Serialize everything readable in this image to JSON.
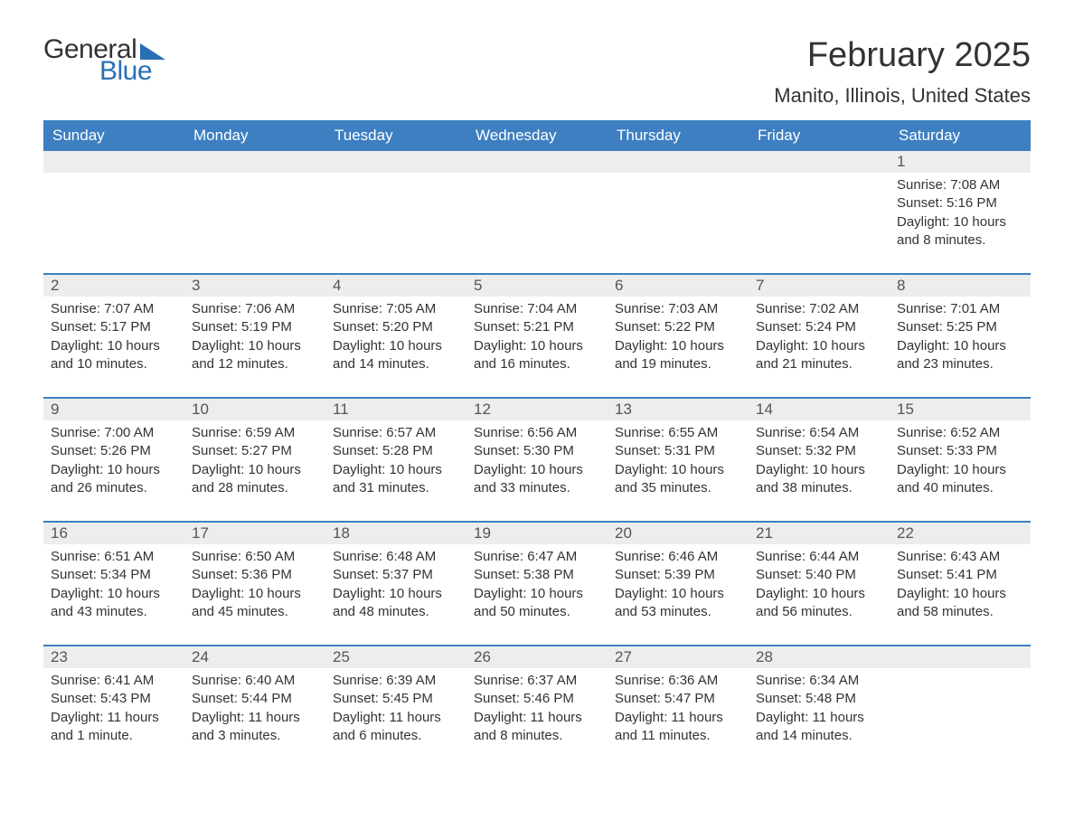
{
  "logo": {
    "text1": "General",
    "text2": "Blue"
  },
  "title": "February 2025",
  "location": "Manito, Illinois, United States",
  "colors": {
    "header_bg": "#3d7fc1",
    "header_text": "#ffffff",
    "daynum_bg": "#ededed",
    "week_border": "#3d7fc1",
    "logo_accent": "#2a6fb5",
    "body_text": "#333333"
  },
  "days_of_week": [
    "Sunday",
    "Monday",
    "Tuesday",
    "Wednesday",
    "Thursday",
    "Friday",
    "Saturday"
  ],
  "weeks": [
    [
      null,
      null,
      null,
      null,
      null,
      null,
      {
        "n": "1",
        "sunrise": "Sunrise: 7:08 AM",
        "sunset": "Sunset: 5:16 PM",
        "daylight": "Daylight: 10 hours and 8 minutes."
      }
    ],
    [
      {
        "n": "2",
        "sunrise": "Sunrise: 7:07 AM",
        "sunset": "Sunset: 5:17 PM",
        "daylight": "Daylight: 10 hours and 10 minutes."
      },
      {
        "n": "3",
        "sunrise": "Sunrise: 7:06 AM",
        "sunset": "Sunset: 5:19 PM",
        "daylight": "Daylight: 10 hours and 12 minutes."
      },
      {
        "n": "4",
        "sunrise": "Sunrise: 7:05 AM",
        "sunset": "Sunset: 5:20 PM",
        "daylight": "Daylight: 10 hours and 14 minutes."
      },
      {
        "n": "5",
        "sunrise": "Sunrise: 7:04 AM",
        "sunset": "Sunset: 5:21 PM",
        "daylight": "Daylight: 10 hours and 16 minutes."
      },
      {
        "n": "6",
        "sunrise": "Sunrise: 7:03 AM",
        "sunset": "Sunset: 5:22 PM",
        "daylight": "Daylight: 10 hours and 19 minutes."
      },
      {
        "n": "7",
        "sunrise": "Sunrise: 7:02 AM",
        "sunset": "Sunset: 5:24 PM",
        "daylight": "Daylight: 10 hours and 21 minutes."
      },
      {
        "n": "8",
        "sunrise": "Sunrise: 7:01 AM",
        "sunset": "Sunset: 5:25 PM",
        "daylight": "Daylight: 10 hours and 23 minutes."
      }
    ],
    [
      {
        "n": "9",
        "sunrise": "Sunrise: 7:00 AM",
        "sunset": "Sunset: 5:26 PM",
        "daylight": "Daylight: 10 hours and 26 minutes."
      },
      {
        "n": "10",
        "sunrise": "Sunrise: 6:59 AM",
        "sunset": "Sunset: 5:27 PM",
        "daylight": "Daylight: 10 hours and 28 minutes."
      },
      {
        "n": "11",
        "sunrise": "Sunrise: 6:57 AM",
        "sunset": "Sunset: 5:28 PM",
        "daylight": "Daylight: 10 hours and 31 minutes."
      },
      {
        "n": "12",
        "sunrise": "Sunrise: 6:56 AM",
        "sunset": "Sunset: 5:30 PM",
        "daylight": "Daylight: 10 hours and 33 minutes."
      },
      {
        "n": "13",
        "sunrise": "Sunrise: 6:55 AM",
        "sunset": "Sunset: 5:31 PM",
        "daylight": "Daylight: 10 hours and 35 minutes."
      },
      {
        "n": "14",
        "sunrise": "Sunrise: 6:54 AM",
        "sunset": "Sunset: 5:32 PM",
        "daylight": "Daylight: 10 hours and 38 minutes."
      },
      {
        "n": "15",
        "sunrise": "Sunrise: 6:52 AM",
        "sunset": "Sunset: 5:33 PM",
        "daylight": "Daylight: 10 hours and 40 minutes."
      }
    ],
    [
      {
        "n": "16",
        "sunrise": "Sunrise: 6:51 AM",
        "sunset": "Sunset: 5:34 PM",
        "daylight": "Daylight: 10 hours and 43 minutes."
      },
      {
        "n": "17",
        "sunrise": "Sunrise: 6:50 AM",
        "sunset": "Sunset: 5:36 PM",
        "daylight": "Daylight: 10 hours and 45 minutes."
      },
      {
        "n": "18",
        "sunrise": "Sunrise: 6:48 AM",
        "sunset": "Sunset: 5:37 PM",
        "daylight": "Daylight: 10 hours and 48 minutes."
      },
      {
        "n": "19",
        "sunrise": "Sunrise: 6:47 AM",
        "sunset": "Sunset: 5:38 PM",
        "daylight": "Daylight: 10 hours and 50 minutes."
      },
      {
        "n": "20",
        "sunrise": "Sunrise: 6:46 AM",
        "sunset": "Sunset: 5:39 PM",
        "daylight": "Daylight: 10 hours and 53 minutes."
      },
      {
        "n": "21",
        "sunrise": "Sunrise: 6:44 AM",
        "sunset": "Sunset: 5:40 PM",
        "daylight": "Daylight: 10 hours and 56 minutes."
      },
      {
        "n": "22",
        "sunrise": "Sunrise: 6:43 AM",
        "sunset": "Sunset: 5:41 PM",
        "daylight": "Daylight: 10 hours and 58 minutes."
      }
    ],
    [
      {
        "n": "23",
        "sunrise": "Sunrise: 6:41 AM",
        "sunset": "Sunset: 5:43 PM",
        "daylight": "Daylight: 11 hours and 1 minute."
      },
      {
        "n": "24",
        "sunrise": "Sunrise: 6:40 AM",
        "sunset": "Sunset: 5:44 PM",
        "daylight": "Daylight: 11 hours and 3 minutes."
      },
      {
        "n": "25",
        "sunrise": "Sunrise: 6:39 AM",
        "sunset": "Sunset: 5:45 PM",
        "daylight": "Daylight: 11 hours and 6 minutes."
      },
      {
        "n": "26",
        "sunrise": "Sunrise: 6:37 AM",
        "sunset": "Sunset: 5:46 PM",
        "daylight": "Daylight: 11 hours and 8 minutes."
      },
      {
        "n": "27",
        "sunrise": "Sunrise: 6:36 AM",
        "sunset": "Sunset: 5:47 PM",
        "daylight": "Daylight: 11 hours and 11 minutes."
      },
      {
        "n": "28",
        "sunrise": "Sunrise: 6:34 AM",
        "sunset": "Sunset: 5:48 PM",
        "daylight": "Daylight: 11 hours and 14 minutes."
      },
      null
    ]
  ]
}
